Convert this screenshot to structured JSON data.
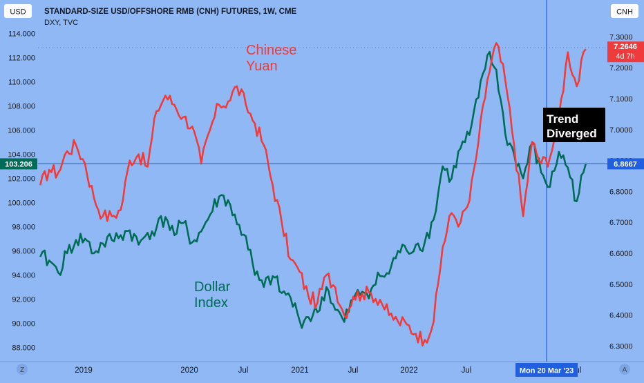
{
  "header": {
    "title": "STANDARD-SIZE USD/OFFSHORE RMB (CNH) FUTURES, 1W, CME",
    "subtitle": "DXY, TVC",
    "left_scale_label": "USD",
    "right_scale_label": "CNH",
    "left_corner_label": "Z",
    "right_corner_label": "A"
  },
  "annotations": {
    "yuan_line1": "Chinese",
    "yuan_line2": "Yuan",
    "dollar_line1": "Dollar",
    "dollar_line2": "Index",
    "trend_line1": "Trend",
    "trend_line2": "Diverged",
    "crosshair_date": "Mon 20 Mar '23"
  },
  "colors": {
    "background": "#8fb8f4",
    "cnh": "#ef3b3b",
    "dxy": "#006b56",
    "crosshair": "#1f5fe0"
  },
  "chart_data": {
    "type": "line",
    "title": "STANDARD-SIZE USD/OFFSHORE RMB (CNH) FUTURES, 1W, CME",
    "x_ticks": [
      "2019",
      "2020",
      "Jul",
      "2021",
      "Jul",
      "2022",
      "Jul",
      "Jul"
    ],
    "y_left": {
      "label": "USD",
      "ticks": [
        "114.000",
        "112.000",
        "110.000",
        "108.000",
        "106.000",
        "104.000",
        "102.000",
        "100.000",
        "98.000",
        "96.000",
        "94.000",
        "92.000",
        "90.000",
        "88.000"
      ],
      "range": [
        87.5,
        114.5
      ]
    },
    "y_right": {
      "label": "CNH",
      "ticks": [
        "7.3000",
        "7.2000",
        "7.1000",
        "7.0000",
        "6.9000",
        "6.8000",
        "6.7000",
        "6.6000",
        "6.5000",
        "6.4000",
        "6.3000"
      ],
      "range": [
        6.2766,
        7.3297
      ]
    },
    "series": [
      {
        "axis": "right",
        "last_label": "7.2646",
        "countdown_label": "4d 7h",
        "points": [
          [
            "2018-07",
            6.82
          ],
          [
            "2018-08",
            6.87
          ],
          [
            "2018-09",
            6.86
          ],
          [
            "2018-10",
            6.93
          ],
          [
            "2018-11",
            6.95
          ],
          [
            "2018-12",
            6.89
          ],
          [
            "2019-01",
            6.78
          ],
          [
            "2019-02",
            6.72
          ],
          [
            "2019-03",
            6.72
          ],
          [
            "2019-04",
            6.74
          ],
          [
            "2019-05",
            6.9
          ],
          [
            "2019-06",
            6.92
          ],
          [
            "2019-07",
            6.88
          ],
          [
            "2019-08",
            7.06
          ],
          [
            "2019-09",
            7.11
          ],
          [
            "2019-10",
            7.08
          ],
          [
            "2019-11",
            7.04
          ],
          [
            "2019-12",
            7.01
          ],
          [
            "2020-01",
            6.89
          ],
          [
            "2020-02",
            7.0
          ],
          [
            "2020-03",
            7.08
          ],
          [
            "2020-04",
            7.09
          ],
          [
            "2020-05",
            7.14
          ],
          [
            "2020-06",
            7.08
          ],
          [
            "2020-07",
            7.02
          ],
          [
            "2020-08",
            6.95
          ],
          [
            "2020-09",
            6.82
          ],
          [
            "2020-10",
            6.7
          ],
          [
            "2020-11",
            6.58
          ],
          [
            "2020-12",
            6.54
          ],
          [
            "2021-01",
            6.46
          ],
          [
            "2021-02",
            6.44
          ],
          [
            "2021-03",
            6.53
          ],
          [
            "2021-04",
            6.49
          ],
          [
            "2021-05",
            6.4
          ],
          [
            "2021-06",
            6.46
          ],
          [
            "2021-07",
            6.47
          ],
          [
            "2021-08",
            6.47
          ],
          [
            "2021-09",
            6.45
          ],
          [
            "2021-10",
            6.4
          ],
          [
            "2021-11",
            6.38
          ],
          [
            "2021-12",
            6.37
          ],
          [
            "2022-01",
            6.34
          ],
          [
            "2022-02",
            6.32
          ],
          [
            "2022-03",
            6.38
          ],
          [
            "2022-04",
            6.62
          ],
          [
            "2022-05",
            6.73
          ],
          [
            "2022-06",
            6.7
          ],
          [
            "2022-07",
            6.77
          ],
          [
            "2022-08",
            6.96
          ],
          [
            "2022-09",
            7.16
          ],
          [
            "2022-10",
            7.28
          ],
          [
            "2022-11",
            7.16
          ],
          [
            "2022-12",
            6.95
          ],
          [
            "2023-01",
            6.72
          ],
          [
            "2023-02",
            6.96
          ],
          [
            "2023-03",
            6.89
          ],
          [
            "2023-04",
            6.91
          ],
          [
            "2023-05",
            7.04
          ],
          [
            "2023-06",
            7.25
          ],
          [
            "2023-07",
            7.14
          ],
          [
            "2023-08",
            7.26
          ]
        ]
      },
      {
        "axis": "left",
        "last_label": "103.206",
        "points": [
          [
            "2018-07",
            95.5
          ],
          [
            "2018-08",
            95.2
          ],
          [
            "2018-09",
            94.2
          ],
          [
            "2018-10",
            95.8
          ],
          [
            "2018-11",
            96.9
          ],
          [
            "2018-12",
            97.0
          ],
          [
            "2019-01",
            95.8
          ],
          [
            "2019-02",
            96.6
          ],
          [
            "2019-03",
            96.9
          ],
          [
            "2019-04",
            97.3
          ],
          [
            "2019-05",
            97.7
          ],
          [
            "2019-06",
            96.5
          ],
          [
            "2019-07",
            97.5
          ],
          [
            "2019-08",
            97.9
          ],
          [
            "2019-09",
            98.8
          ],
          [
            "2019-10",
            97.3
          ],
          [
            "2019-11",
            98.3
          ],
          [
            "2019-12",
            96.7
          ],
          [
            "2020-01",
            97.6
          ],
          [
            "2020-02",
            99.0
          ],
          [
            "2020-03",
            100.5
          ],
          [
            "2020-04",
            100.2
          ],
          [
            "2020-05",
            98.2
          ],
          [
            "2020-06",
            97.2
          ],
          [
            "2020-07",
            94.0
          ],
          [
            "2020-08",
            93.0
          ],
          [
            "2020-09",
            93.9
          ],
          [
            "2020-10",
            92.5
          ],
          [
            "2020-11",
            92.1
          ],
          [
            "2020-12",
            90.2
          ],
          [
            "2021-01",
            90.5
          ],
          [
            "2021-02",
            90.9
          ],
          [
            "2021-03",
            93.0
          ],
          [
            "2021-04",
            91.1
          ],
          [
            "2021-05",
            90.1
          ],
          [
            "2021-06",
            92.0
          ],
          [
            "2021-07",
            92.6
          ],
          [
            "2021-08",
            92.8
          ],
          [
            "2021-09",
            93.9
          ],
          [
            "2021-10",
            94.1
          ],
          [
            "2021-11",
            96.0
          ],
          [
            "2021-12",
            96.0
          ],
          [
            "2022-01",
            96.5
          ],
          [
            "2022-02",
            96.7
          ],
          [
            "2022-03",
            98.6
          ],
          [
            "2022-04",
            103.0
          ],
          [
            "2022-05",
            102.0
          ],
          [
            "2022-06",
            104.5
          ],
          [
            "2022-07",
            105.6
          ],
          [
            "2022-08",
            108.7
          ],
          [
            "2022-09",
            112.2
          ],
          [
            "2022-10",
            111.0
          ],
          [
            "2022-11",
            105.7
          ],
          [
            "2022-12",
            104.0
          ],
          [
            "2023-01",
            102.0
          ],
          [
            "2023-02",
            104.9
          ],
          [
            "2023-03",
            102.5
          ],
          [
            "2023-04",
            101.3
          ],
          [
            "2023-05",
            104.2
          ],
          [
            "2023-06",
            102.9
          ],
          [
            "2023-07",
            100.1
          ],
          [
            "2023-08",
            103.2
          ]
        ]
      }
    ],
    "crosshair": {
      "x": "2023-03-20",
      "right_value_label": "6.8667"
    },
    "grid": false,
    "legend": "none"
  }
}
